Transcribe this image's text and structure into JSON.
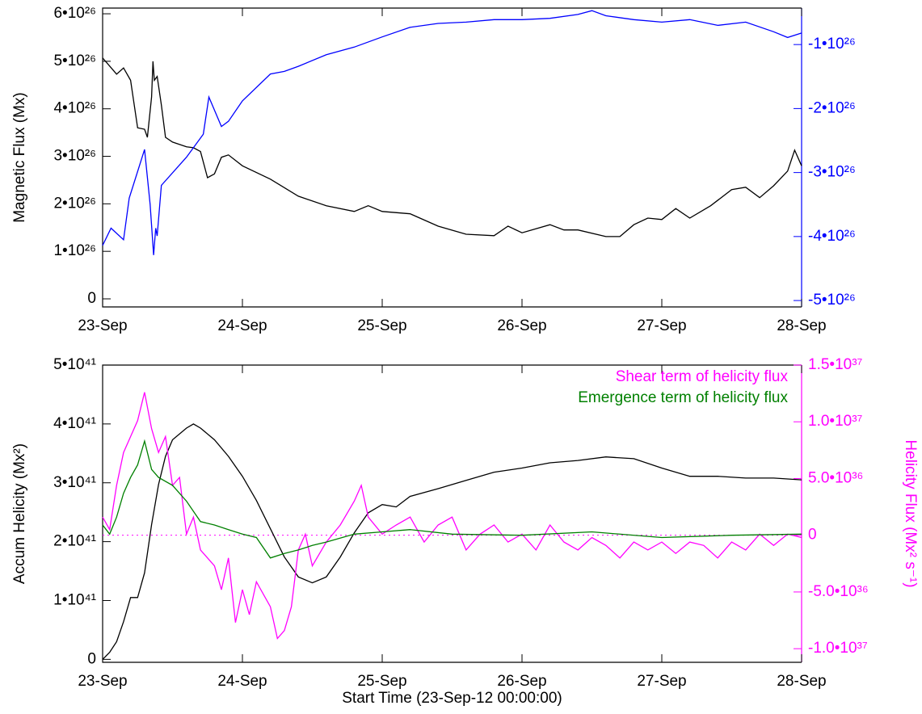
{
  "chart_data": [
    {
      "type": "line",
      "ylabel": "Magnetic Flux (Mx)",
      "xlim": [
        0,
        5
      ],
      "xticks": [
        {
          "value": 0,
          "label": "23-Sep"
        },
        {
          "value": 1,
          "label": "24-Sep"
        },
        {
          "value": 2,
          "label": "25-Sep"
        },
        {
          "value": 3,
          "label": "26-Sep"
        },
        {
          "value": 4,
          "label": "27-Sep"
        },
        {
          "value": 5,
          "label": "28-Sep"
        }
      ],
      "ylim": [
        -1.7e+25,
        6.12e+26
      ],
      "yticks": [
        0,
        {
          "value": 1e+26,
          "label": "1•10²⁶"
        },
        {
          "value": 2e+26,
          "label": "2•10²⁶"
        },
        {
          "value": 3e+26,
          "label": "3•10²⁶"
        },
        {
          "value": 4e+26,
          "label": "4•10²⁶"
        },
        {
          "value": 5e+26,
          "label": "5•10²⁶"
        },
        {
          "value": 6e+26,
          "label": "6•10²⁶"
        }
      ],
      "y2lim": [
        -5.1e+26,
        -4.3e+25
      ],
      "y2ticks": [
        {
          "value": -1e+26,
          "label": "-1•10²⁶"
        },
        {
          "value": -2e+26,
          "label": "-2•10²⁶"
        },
        {
          "value": -3e+26,
          "label": "-3•10²⁶"
        },
        {
          "value": -4e+26,
          "label": "-4•10²⁶"
        },
        {
          "value": -5e+26,
          "label": "-5•10²⁶"
        }
      ],
      "y2color": "#0000ff",
      "series": [
        {
          "color": "#000000",
          "x": [
            0,
            0.05,
            0.1,
            0.15,
            0.2,
            0.25,
            0.3,
            0.32,
            0.35,
            0.36,
            0.37,
            0.39,
            0.42,
            0.45,
            0.5,
            0.6,
            0.65,
            0.7,
            0.75,
            0.8,
            0.85,
            0.9,
            1.0,
            1.2,
            1.4,
            1.6,
            1.8,
            1.9,
            2.0,
            2.2,
            2.4,
            2.6,
            2.8,
            2.9,
            3.0,
            3.2,
            3.3,
            3.4,
            3.6,
            3.7,
            3.8,
            3.9,
            4.0,
            4.1,
            4.2,
            4.35,
            4.5,
            4.6,
            4.7,
            4.8,
            4.9,
            4.95,
            5.0
          ],
          "values": [
            5.07e+26,
            4.9e+26,
            4.73e+26,
            4.86e+26,
            4.6e+26,
            3.6e+26,
            3.57e+26,
            3.4e+26,
            4.25e+26,
            5e+26,
            4.6e+26,
            4.68e+26,
            4.08e+26,
            3.4e+26,
            3.3e+26,
            3.2e+26,
            3.18e+26,
            3.1e+26,
            2.55e+26,
            2.63e+26,
            2.98e+26,
            3.03e+26,
            2.8e+26,
            2.52e+26,
            2.16e+26,
            1.96e+26,
            1.84e+26,
            1.96e+26,
            1.84e+26,
            1.79e+26,
            1.53e+26,
            1.36e+26,
            1.33e+26,
            1.53e+26,
            1.39e+26,
            1.56e+26,
            1.45e+26,
            1.45e+26,
            1.31e+26,
            1.31e+26,
            1.56e+26,
            1.7e+26,
            1.67e+26,
            1.9e+26,
            1.7e+26,
            1.96e+26,
            2.3e+26,
            2.35e+26,
            2.13e+26,
            2.38e+26,
            2.69e+26,
            3.13e+26,
            2.8e+26
          ]
        },
        {
          "color": "#0000ff",
          "axis": "y2",
          "x": [
            0,
            0.06,
            0.15,
            0.19,
            0.3,
            0.34,
            0.365,
            0.38,
            0.39,
            0.42,
            0.6,
            0.72,
            0.76,
            0.85,
            0.9,
            1.0,
            1.2,
            1.3,
            1.4,
            1.6,
            1.8,
            2.0,
            2.2,
            2.4,
            2.6,
            2.8,
            3.0,
            3.2,
            3.4,
            3.5,
            3.6,
            3.8,
            4.0,
            4.2,
            4.4,
            4.6,
            4.8,
            4.9,
            5.0
          ],
          "values": [
            -4.14e+26,
            -3.87e+26,
            -4.05e+26,
            -3.4e+26,
            -2.64e+26,
            -3.5e+26,
            -4.29e+26,
            -3.87e+26,
            -3.99e+26,
            -3.2e+26,
            -2.76e+26,
            -2.4e+26,
            -1.82e+26,
            -2.28e+26,
            -2.2e+26,
            -1.88e+26,
            -1.46e+26,
            -1.42e+26,
            -1.34e+26,
            -1.16e+26,
            -1.04e+26,
            -8.8e+25,
            -7.3e+25,
            -6.7e+25,
            -6.5e+25,
            -6.1e+25,
            -6.1e+25,
            -5.9e+25,
            -5.3e+25,
            -4.7e+25,
            -5.5e+25,
            -6.1e+25,
            -6.5e+25,
            -6.1e+25,
            -7e+25,
            -6.5e+25,
            -8e+25,
            -8.9e+25,
            -8.2e+25
          ]
        }
      ]
    },
    {
      "type": "line",
      "ylabel": "Accum Helicity (Mx²)",
      "y2label": "Helicity Flux (Mx² s⁻¹)",
      "xlabel": "Start Time (23-Sep-12 00:00:00)",
      "xlim": [
        0,
        5
      ],
      "xticks": [
        {
          "value": 0,
          "label": "23-Sep"
        },
        {
          "value": 1,
          "label": "24-Sep"
        },
        {
          "value": 2,
          "label": "25-Sep"
        },
        {
          "value": 3,
          "label": "26-Sep"
        },
        {
          "value": 4,
          "label": "27-Sep"
        },
        {
          "value": 5,
          "label": "28-Sep"
        }
      ],
      "ylim": [
        -5e+39,
        5e+41
      ],
      "yticks": [
        0,
        {
          "value": 1e+41,
          "label": "1•10⁴¹"
        },
        {
          "value": 2e+41,
          "label": "2•10⁴¹"
        },
        {
          "value": 3e+41,
          "label": "3•10⁴¹"
        },
        {
          "value": 4e+41,
          "label": "4•10⁴¹"
        },
        {
          "value": 5e+41,
          "label": "5•10⁴¹"
        }
      ],
      "y2lim": [
        -1.12e+37,
        1.5e+37
      ],
      "y2ticks": [
        {
          "value": -1e+37,
          "label": "-1.0•10³⁷"
        },
        {
          "value": -5e+36,
          "label": "-5.0•10³⁶"
        },
        0,
        {
          "value": 5e+36,
          "label": "5.0•10³⁶"
        },
        {
          "value": 1e+37,
          "label": "1.0•10³⁷"
        },
        {
          "value": 1.5e+37,
          "label": "1.5•10³⁷"
        }
      ],
      "y2color": "#ff00ff",
      "legend": "upper right",
      "series": [
        {
          "color": "#000000",
          "x": [
            0,
            0.05,
            0.1,
            0.15,
            0.2,
            0.25,
            0.3,
            0.35,
            0.4,
            0.45,
            0.5,
            0.6,
            0.65,
            0.7,
            0.8,
            0.9,
            1.0,
            1.1,
            1.2,
            1.3,
            1.4,
            1.5,
            1.6,
            1.7,
            1.8,
            1.9,
            2.0,
            2.1,
            2.2,
            2.4,
            2.6,
            2.8,
            3.0,
            3.2,
            3.4,
            3.6,
            3.8,
            4.0,
            4.2,
            4.4,
            4.6,
            4.8,
            5.0
          ],
          "values": [
            0,
            1.2e+40,
            3e+40,
            6.4e+40,
            1.05e+41,
            1.05e+41,
            1.47e+41,
            2.29e+41,
            2.97e+41,
            3.45e+41,
            3.73e+41,
            3.93e+41,
            4e+41,
            3.93e+41,
            3.73e+41,
            3.45e+41,
            3.11e+41,
            2.7e+41,
            2.22e+41,
            1.74e+41,
            1.4e+41,
            1.3e+41,
            1.4e+41,
            1.74e+41,
            2.15e+41,
            2.49e+41,
            2.63e+41,
            2.59e+41,
            2.77e+41,
            2.9e+41,
            3.04e+41,
            3.18e+41,
            3.25e+41,
            3.34e+41,
            3.38e+41,
            3.44e+41,
            3.41e+41,
            3.25e+41,
            3.11e+41,
            3.11e+41,
            3.08e+41,
            3.08e+41,
            3.05e+41
          ]
        },
        {
          "name": "Shear term of helicity flux",
          "color": "#ff00ff",
          "axis": "y2",
          "x": [
            0,
            0.05,
            0.1,
            0.15,
            0.2,
            0.25,
            0.3,
            0.35,
            0.4,
            0.45,
            0.5,
            0.55,
            0.6,
            0.65,
            0.7,
            0.8,
            0.85,
            0.9,
            0.95,
            1.0,
            1.05,
            1.1,
            1.2,
            1.25,
            1.3,
            1.35,
            1.4,
            1.45,
            1.5,
            1.6,
            1.7,
            1.8,
            1.85,
            1.9,
            2.0,
            2.1,
            2.2,
            2.3,
            2.4,
            2.5,
            2.6,
            2.7,
            2.8,
            2.9,
            3.0,
            3.1,
            3.2,
            3.3,
            3.4,
            3.5,
            3.6,
            3.7,
            3.8,
            3.9,
            4.0,
            4.1,
            4.2,
            4.3,
            4.4,
            4.5,
            4.6,
            4.7,
            4.8,
            4.9,
            5.0
          ],
          "values": [
            1.6e+36,
            5e+35,
            4.4e+36,
            7.3e+36,
            8.7e+36,
            1.01e+37,
            1.26e+37,
            9.4e+36,
            7.3e+36,
            8.7e+36,
            4.4e+36,
            5.1e+36,
            1e+35,
            1.6e+36,
            -1.3e+36,
            -2.7e+36,
            -4.8e+36,
            -2e+36,
            -7.7e+36,
            -4.8e+36,
            -7e+36,
            -4.1e+36,
            -6.3e+36,
            -9.1e+36,
            -8.4e+36,
            -6.3e+36,
            -1.3e+36,
            1e+35,
            -2.7e+36,
            -6e+35,
            9e+35,
            3e+36,
            4.4e+36,
            1.6e+36,
            1e+35,
            9e+35,
            1.6e+36,
            -6e+35,
            9e+35,
            1.6e+36,
            -1.3e+36,
            1e+35,
            9e+35,
            -6e+35,
            1e+35,
            -1.3e+36,
            9e+35,
            -6e+35,
            -1.3e+36,
            -2e+35,
            -9e+35,
            -2e+36,
            -6e+35,
            -1.3e+36,
            -6e+35,
            -1.6e+36,
            -6e+35,
            -9e+35,
            -2e+36,
            -6e+35,
            -1.3e+36,
            1e+35,
            -9e+35,
            1e+35,
            -2e+35
          ]
        },
        {
          "name": "Emergence term of helicity flux",
          "color": "#008000",
          "axis": "y2",
          "x": [
            0,
            0.05,
            0.1,
            0.15,
            0.2,
            0.25,
            0.3,
            0.35,
            0.4,
            0.5,
            0.6,
            0.7,
            0.8,
            0.9,
            1.0,
            1.1,
            1.2,
            1.3,
            1.4,
            1.5,
            1.6,
            1.8,
            2.0,
            2.2,
            2.5,
            3.0,
            3.5,
            4.0,
            4.5,
            5.0
          ],
          "values": [
            9e+35,
            1e+35,
            1.6e+36,
            3.7e+36,
            5.1e+36,
            6.2e+36,
            8.3e+36,
            5.8e+36,
            5.1e+36,
            4.4e+36,
            3e+36,
            1.2e+36,
            9e+35,
            5e+35,
            1e+35,
            -2e+35,
            -2e+36,
            -1.6e+36,
            -1.3e+36,
            -9e+35,
            -6e+35,
            1e+35,
            3e+35,
            5e+35,
            1e+35,
            0,
            3e+35,
            -2e+35,
            0,
            1e+35
          ]
        }
      ]
    }
  ]
}
